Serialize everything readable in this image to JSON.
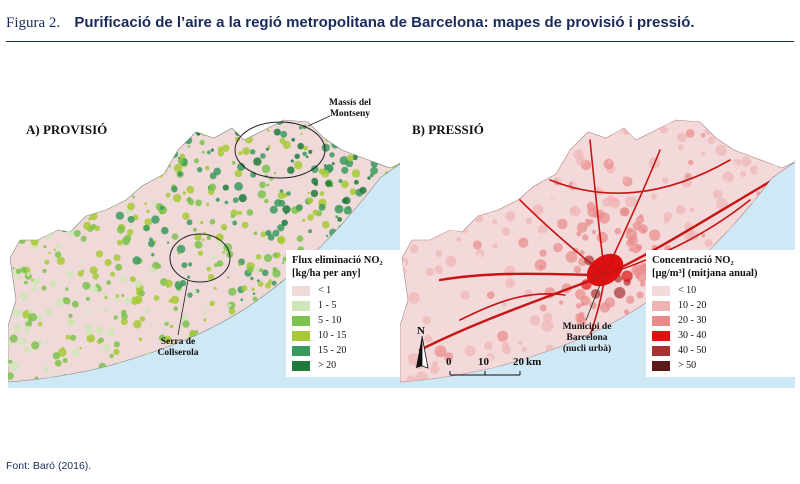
{
  "figure": {
    "number": "Figura 2.",
    "title": "Purificació de l’aire a la regió metropolitana de Barcelona: mapes de provisió i pressió."
  },
  "panel_a": {
    "label": "A) PROVISIÓ",
    "callout_north": [
      "Massís del",
      "Montseny"
    ],
    "callout_south": [
      "Serra de",
      "Collserola"
    ],
    "legend_title": [
      "Flux eliminació NO₂",
      "[kg/ha per any]"
    ],
    "legend": [
      {
        "label": "< 1",
        "color": "#f0d9d9"
      },
      {
        "label": "1 - 5",
        "color": "#cfe6b8"
      },
      {
        "label": "5 - 10",
        "color": "#7cc24e"
      },
      {
        "label": "10 - 15",
        "color": "#a7c935"
      },
      {
        "label": "15 - 20",
        "color": "#3a9a5e"
      },
      {
        "label": "> 20",
        "color": "#1e7a3a"
      }
    ]
  },
  "panel_b": {
    "label": "B) PRESSIÓ",
    "callout": [
      "Municipi de",
      "Barcelona",
      "(nucli urbà)"
    ],
    "legend_title": [
      "Concentració NO₂",
      "[µg/m³] (mitjana anual)"
    ],
    "legend": [
      {
        "label": "< 10",
        "color": "#f3d9d9"
      },
      {
        "label": "10 - 20",
        "color": "#eeb3b3"
      },
      {
        "label": "20 - 30",
        "color": "#e98a8a"
      },
      {
        "label": "30 - 40",
        "color": "#e01010"
      },
      {
        "label": "40 - 50",
        "color": "#a83232"
      },
      {
        "label": "> 50",
        "color": "#5a1a1a"
      }
    ],
    "north_label": "N",
    "scale": {
      "ticks": [
        "0",
        "10",
        "20"
      ],
      "unit": "km"
    }
  },
  "colors": {
    "sea": "#cfe8f5",
    "header": "#1a2a5a"
  },
  "source": "Font: Baró (2016)."
}
